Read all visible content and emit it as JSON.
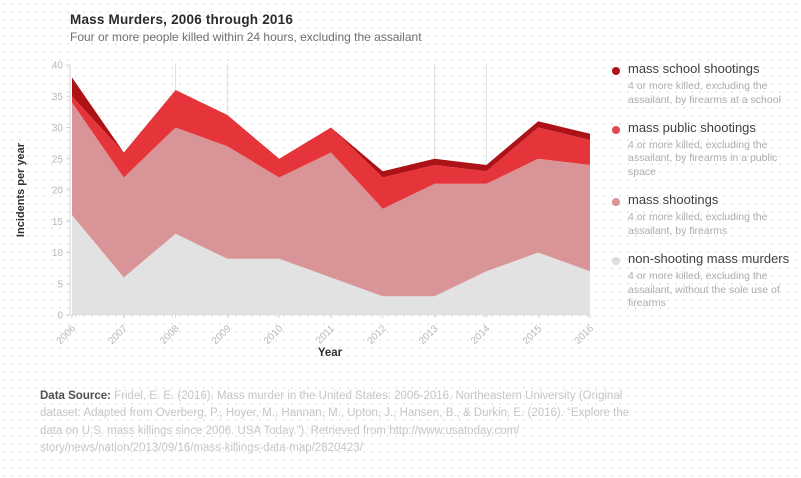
{
  "header": {
    "title": "Mass Murders, 2006 through 2016",
    "subtitle": "Four or more people killed within 24 hours, excluding the assailant"
  },
  "chart_data": {
    "type": "area",
    "stacked": true,
    "title": "Mass Murders, 2006 through 2016",
    "subtitle": "Four or more people killed within 24 hours, excluding the assailant",
    "xlabel": "Year",
    "ylabel": "Incidents per year",
    "ylim": [
      0,
      40
    ],
    "ytick_step": 5,
    "grid": "vertical-reference-lines-only",
    "legend_position": "right",
    "x": [
      2006,
      2007,
      2008,
      2009,
      2010,
      2011,
      2012,
      2013,
      2014,
      2015,
      2016
    ],
    "gridline_years": [
      2008,
      2009,
      2013,
      2014
    ],
    "series": [
      {
        "name": "non-shooting mass murders",
        "color": "#e2e2e2",
        "values": [
          16,
          6,
          13,
          9,
          9,
          6,
          3,
          3,
          7,
          10,
          7
        ]
      },
      {
        "name": "mass shootings",
        "color": "#d89496",
        "values": [
          18,
          16,
          17,
          18,
          13,
          20,
          14,
          18,
          14,
          15,
          17
        ]
      },
      {
        "name": "mass public shootings",
        "color": "#e5343a",
        "values": [
          1,
          4,
          6,
          5,
          3,
          4,
          5,
          3,
          2,
          5,
          4
        ]
      },
      {
        "name": "mass school shootings",
        "color": "#ad1217",
        "values": [
          3,
          0,
          0,
          0,
          0,
          0,
          1,
          1,
          1,
          1,
          1
        ]
      }
    ],
    "axis_colors": {
      "axis_line": "#d4d4d4",
      "tick_label": "#b9b9b9",
      "axis_title": "#2f2f2f",
      "gridline": "#e0e0e0"
    }
  },
  "legend": {
    "items": [
      {
        "label": "mass school shootings",
        "desc": "4 or more killed, excluding the assailant, by firearms at a school",
        "color": "#ad1217"
      },
      {
        "label": "mass public shootings",
        "desc": "4 or more killed, excluding the assailant, by firearms in a public space",
        "color": "#e04a4e"
      },
      {
        "label": "mass shootings",
        "desc": "4 or more killed, excluding the assailant, by firearms",
        "color": "#d89496"
      },
      {
        "label": "non-shooting mass murders",
        "desc": "4 or more killed, excluding the assailant, without the sole use of firearms",
        "color": "#dedede"
      }
    ]
  },
  "footer": {
    "label": "Data Source:",
    "text": " Fridel, E. E. (2016). Mass murder in the United States: 2006-2016. Northeastern University (Original dataset: Adapted from Overberg, P., Hoyer, M., Hannan, M., Upton, J., Hansen, B., & Durkin, E. (2016). “Explore the data on U.S. mass killings since 2006. USA Today.”). Retrieved from http://www.usatoday.com/ story/news/nation/2013/09/16/mass-killings-data-map/2820423/"
  }
}
